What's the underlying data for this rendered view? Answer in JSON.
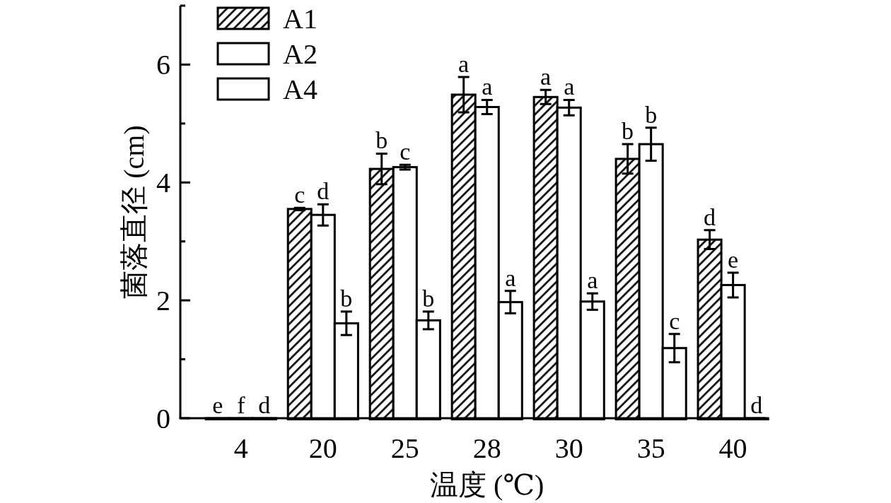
{
  "chart_data": {
    "type": "bar",
    "xlabel": "温度 (℃)",
    "ylabel": "菌落直径 (cm)",
    "categories": [
      "4",
      "20",
      "25",
      "28",
      "30",
      "35",
      "40"
    ],
    "series": [
      {
        "name": "A1",
        "color": "#000000",
        "values": [
          0,
          3.55,
          4.23,
          5.49,
          5.45,
          4.4,
          3.03
        ],
        "errors": [
          null,
          0.02,
          0.26,
          0.3,
          0.12,
          0.25,
          0.16
        ],
        "value_labels": [
          "e",
          "c",
          "b",
          "a",
          "a",
          "b",
          "d"
        ]
      },
      {
        "name": "A2",
        "color": "#ffffff",
        "values": [
          0,
          3.45,
          4.26,
          5.28,
          5.27,
          4.65,
          2.26
        ],
        "errors": [
          null,
          0.18,
          0.04,
          0.12,
          0.13,
          0.28,
          0.21
        ],
        "value_labels": [
          "f",
          "d",
          "c",
          "a",
          "a",
          "b",
          "e"
        ]
      },
      {
        "name": "A4",
        "color": "#ffffff",
        "values": [
          0,
          1.61,
          1.66,
          1.97,
          1.98,
          1.19,
          0
        ],
        "errors": [
          null,
          0.2,
          0.15,
          0.19,
          0.14,
          0.24,
          null
        ],
        "value_labels": [
          "d",
          "b",
          "b",
          "a",
          "a",
          "c",
          "d"
        ]
      }
    ],
    "ylim": [
      0,
      7
    ],
    "yticks": [
      0,
      {
        "value": 1,
        "label": null
      },
      2,
      {
        "value": 3,
        "label": null
      },
      4,
      {
        "value": 5,
        "label": null
      },
      6,
      {
        "value": 7,
        "label": null
      }
    ],
    "legend": "top left"
  }
}
